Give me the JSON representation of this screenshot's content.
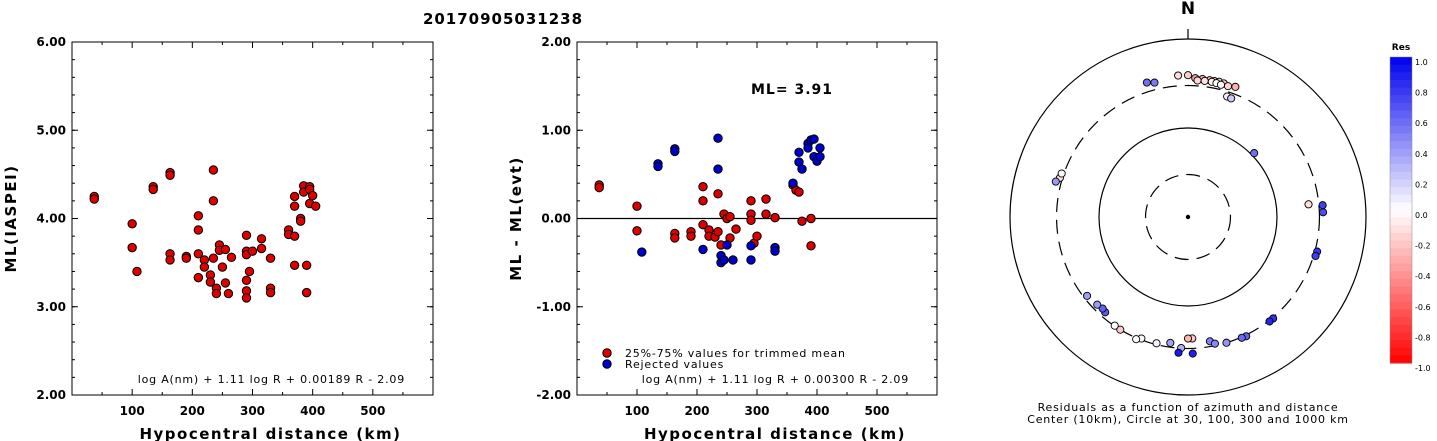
{
  "title": "20170905031238",
  "chart_data": [
    {
      "type": "scatter",
      "xlabel": "Hypocentral distance (km)",
      "ylabel": "ML(IASPEI)",
      "xlim": [
        0,
        600
      ],
      "ylim": [
        2.0,
        6.0
      ],
      "xticks": [
        "100",
        "200",
        "300",
        "400",
        "500"
      ],
      "yticks": [
        "2.00",
        "3.00",
        "4.00",
        "5.00",
        "6.00"
      ],
      "formula": "log A(nm) + 1.11 log R + 0.00189 R - 2.09",
      "series": [
        {
          "color": "#dd0000",
          "points": [
            [
              37,
              4.25
            ],
            [
              37,
              4.22
            ],
            [
              100,
              3.94
            ],
            [
              100,
              3.67
            ],
            [
              108,
              3.4
            ],
            [
              135,
              4.36
            ],
            [
              135,
              4.33
            ],
            [
              163,
              4.52
            ],
            [
              163,
              4.49
            ],
            [
              163,
              3.6
            ],
            [
              163,
              3.53
            ],
            [
              190,
              3.57
            ],
            [
              190,
              3.55
            ],
            [
              210,
              4.03
            ],
            [
              210,
              3.87
            ],
            [
              210,
              3.6
            ],
            [
              210,
              3.33
            ],
            [
              220,
              3.53
            ],
            [
              220,
              3.45
            ],
            [
              235,
              4.55
            ],
            [
              235,
              4.2
            ],
            [
              235,
              3.55
            ],
            [
              230,
              3.36
            ],
            [
              230,
              3.28
            ],
            [
              240,
              3.21
            ],
            [
              240,
              3.15
            ],
            [
              245,
              3.7
            ],
            [
              245,
              3.64
            ],
            [
              250,
              3.45
            ],
            [
              255,
              3.65
            ],
            [
              255,
              3.27
            ],
            [
              260,
              3.15
            ],
            [
              265,
              3.56
            ],
            [
              290,
              3.81
            ],
            [
              290,
              3.63
            ],
            [
              290,
              3.59
            ],
            [
              290,
              3.3
            ],
            [
              290,
              3.18
            ],
            [
              290,
              3.1
            ],
            [
              295,
              3.4
            ],
            [
              300,
              3.63
            ],
            [
              315,
              3.77
            ],
            [
              315,
              3.66
            ],
            [
              330,
              3.55
            ],
            [
              330,
              3.21
            ],
            [
              330,
              3.16
            ],
            [
              360,
              3.87
            ],
            [
              360,
              3.82
            ],
            [
              370,
              4.25
            ],
            [
              370,
              4.14
            ],
            [
              370,
              3.8
            ],
            [
              370,
              3.47
            ],
            [
              380,
              4.0
            ],
            [
              380,
              3.97
            ],
            [
              385,
              4.37
            ],
            [
              385,
              4.3
            ],
            [
              390,
              3.47
            ],
            [
              390,
              3.16
            ],
            [
              395,
              4.36
            ],
            [
              395,
              4.33
            ],
            [
              395,
              4.17
            ],
            [
              400,
              4.26
            ],
            [
              405,
              4.14
            ]
          ]
        }
      ]
    },
    {
      "type": "scatter",
      "xlabel": "Hypocentral distance (km)",
      "ylabel": "ML - ML(evt)",
      "xlim": [
        0,
        600
      ],
      "ylim": [
        -2.0,
        2.0
      ],
      "xticks": [
        "100",
        "200",
        "300",
        "400",
        "500"
      ],
      "yticks": [
        "-2.00",
        "-1.00",
        "0.00",
        "1.00",
        "2.00"
      ],
      "annotation": "ML= 3.91",
      "formula": "log A(nm) + 1.11 log R + 0.00300 R - 2.09",
      "legend": {
        "position": "bottom-left",
        "entries": [
          {
            "label": "25%-75% values for trimmed mean",
            "color": "#dd0000"
          },
          {
            "label": "Rejected values",
            "color": "#0000cc"
          }
        ]
      },
      "series": [
        {
          "name": "25%-75% values for trimmed mean",
          "color": "#dd0000",
          "points": [
            [
              37,
              0.38
            ],
            [
              37,
              0.35
            ],
            [
              100,
              0.14
            ],
            [
              100,
              -0.14
            ],
            [
              163,
              -0.17
            ],
            [
              163,
              -0.22
            ],
            [
              190,
              -0.15
            ],
            [
              190,
              -0.2
            ],
            [
              210,
              0.36
            ],
            [
              210,
              0.2
            ],
            [
              210,
              -0.07
            ],
            [
              220,
              -0.13
            ],
            [
              220,
              -0.2
            ],
            [
              230,
              -0.21
            ],
            [
              235,
              0.28
            ],
            [
              235,
              -0.15
            ],
            [
              240,
              -0.3
            ],
            [
              245,
              0.05
            ],
            [
              250,
              0.0
            ],
            [
              255,
              0.02
            ],
            [
              255,
              -0.22
            ],
            [
              265,
              -0.12
            ],
            [
              290,
              0.2
            ],
            [
              290,
              0.05
            ],
            [
              290,
              -0.02
            ],
            [
              295,
              -0.28
            ],
            [
              300,
              -0.2
            ],
            [
              315,
              0.22
            ],
            [
              315,
              0.05
            ],
            [
              330,
              0.01
            ],
            [
              360,
              0.38
            ],
            [
              365,
              0.32
            ],
            [
              370,
              0.3
            ],
            [
              375,
              -0.03
            ],
            [
              390,
              0.0
            ],
            [
              390,
              -0.31
            ]
          ]
        },
        {
          "name": "Rejected values",
          "color": "#0000cc",
          "points": [
            [
              108,
              -0.38
            ],
            [
              135,
              0.62
            ],
            [
              135,
              0.59
            ],
            [
              163,
              0.79
            ],
            [
              163,
              0.76
            ],
            [
              210,
              -0.35
            ],
            [
              235,
              0.91
            ],
            [
              235,
              0.56
            ],
            [
              240,
              -0.42
            ],
            [
              240,
              -0.5
            ],
            [
              245,
              -0.47
            ],
            [
              250,
              -0.3
            ],
            [
              260,
              -0.47
            ],
            [
              290,
              -0.31
            ],
            [
              290,
              -0.47
            ],
            [
              330,
              -0.33
            ],
            [
              330,
              -0.37
            ],
            [
              360,
              0.4
            ],
            [
              370,
              0.75
            ],
            [
              370,
              0.64
            ],
            [
              375,
              0.56
            ],
            [
              385,
              0.85
            ],
            [
              385,
              0.8
            ],
            [
              390,
              0.89
            ],
            [
              395,
              0.9
            ],
            [
              395,
              0.7
            ],
            [
              400,
              0.65
            ],
            [
              405,
              0.8
            ],
            [
              405,
              0.7
            ]
          ]
        }
      ]
    },
    {
      "type": "polar-scatter",
      "north_label": "N",
      "caption_line1": "Residuals as a function of azimuth and distance",
      "caption_line2": "Center (10km), Circle at 30, 100, 300 and 1000 km",
      "rings": [
        {
          "distance_km": 30,
          "style": "dashed"
        },
        {
          "distance_km": 100,
          "style": "solid"
        },
        {
          "distance_km": 300,
          "style": "dashed"
        },
        {
          "distance_km": 1000,
          "style": "solid"
        }
      ],
      "colorbar": {
        "title": "Res",
        "ticks": [
          "1.0",
          "0.8",
          "0.6",
          "0.4",
          "0.2",
          "0.0",
          "-0.2",
          "-0.4",
          "-0.6",
          "-0.8",
          "-1.0"
        ],
        "min": -1.0,
        "max": 1.0,
        "positive_color": "#0000ee",
        "negative_color": "#ff0000"
      },
      "stations": [
        {
          "az": 3,
          "dist": 365,
          "res": -0.38
        },
        {
          "az": 6,
          "dist": 362,
          "res": -0.35
        },
        {
          "az": 9,
          "dist": 360,
          "res": -0.3
        },
        {
          "az": 11,
          "dist": 360,
          "res": -0.28
        },
        {
          "az": 13,
          "dist": 362,
          "res": -0.2
        },
        {
          "az": 15,
          "dist": 358,
          "res": -0.22
        },
        {
          "az": 4,
          "dist": 345,
          "res": -0.15
        },
        {
          "az": 7,
          "dist": 347,
          "res": -0.12
        },
        {
          "az": 10,
          "dist": 348,
          "res": -0.05
        },
        {
          "az": 12,
          "dist": 345,
          "res": -0.02
        },
        {
          "az": 14,
          "dist": 340,
          "res": 0.02
        },
        {
          "az": 17,
          "dist": 345,
          "res": -0.17
        },
        {
          "az": 20,
          "dist": 360,
          "res": -0.31
        },
        {
          "az": -4,
          "dist": 392,
          "res": -0.14
        },
        {
          "az": 0,
          "dist": 392,
          "res": -0.2
        },
        {
          "az": -17,
          "dist": 380,
          "res": 0.56
        },
        {
          "az": 18,
          "dist": 265,
          "res": -0.07
        },
        {
          "az": 20,
          "dist": 262,
          "res": 0.2
        },
        {
          "az": 46,
          "dist": 108,
          "res": 0.56
        },
        {
          "az": 84,
          "dist": 230,
          "res": -0.13
        },
        {
          "az": 85,
          "dist": 330,
          "res": 0.75
        },
        {
          "az": 88,
          "dist": 330,
          "res": 0.7
        },
        {
          "az": 105,
          "dist": 318,
          "res": 0.79
        },
        {
          "az": 107,
          "dist": 315,
          "res": 0.76
        },
        {
          "az": 140,
          "dist": 308,
          "res": 0.8
        },
        {
          "az": 142,
          "dist": 308,
          "res": 0.85
        },
        {
          "az": 178,
          "dist": 232,
          "res": -0.21
        },
        {
          "az": 180,
          "dist": 232,
          "res": -0.3
        },
        {
          "az": 170,
          "dist": 262,
          "res": 0.5
        },
        {
          "az": 168,
          "dist": 285,
          "res": 0.47
        },
        {
          "az": 163,
          "dist": 300,
          "res": 0.42
        },
        {
          "az": 154,
          "dist": 310,
          "res": 0.61
        },
        {
          "az": 156,
          "dist": 306,
          "res": 0.59
        },
        {
          "az": 188,
          "dist": 268,
          "res": 0.37
        },
        {
          "az": 194,
          "dist": 290,
          "res": 0.05
        },
        {
          "az": 183,
          "dist": 298,
          "res": 0.31
        },
        {
          "az": 184,
          "dist": 338,
          "res": 0.9
        },
        {
          "az": 178,
          "dist": 343,
          "res": 0.88
        },
        {
          "az": 201,
          "dist": 290,
          "res": -0.02
        },
        {
          "az": 203,
          "dist": 310,
          "res": 0.0
        },
        {
          "az": 211,
          "dist": 300,
          "res": -0.22
        },
        {
          "az": 214,
          "dist": 297,
          "res": 0.0
        },
        {
          "az": 221,
          "dist": 262,
          "res": 0.64
        },
        {
          "az": 223,
          "dist": 255,
          "res": 0.62
        },
        {
          "az": 226,
          "dist": 262,
          "res": 0.39
        },
        {
          "az": 232,
          "dist": 275,
          "res": 0.38
        },
        {
          "az": 287,
          "dist": 320,
          "res": -0.12
        },
        {
          "az": 289,
          "dist": 317,
          "res": 0.03
        },
        {
          "az": 285,
          "dist": 345,
          "res": 0.4
        },
        {
          "az": 346,
          "dist": 360,
          "res": 0.52
        }
      ]
    }
  ]
}
